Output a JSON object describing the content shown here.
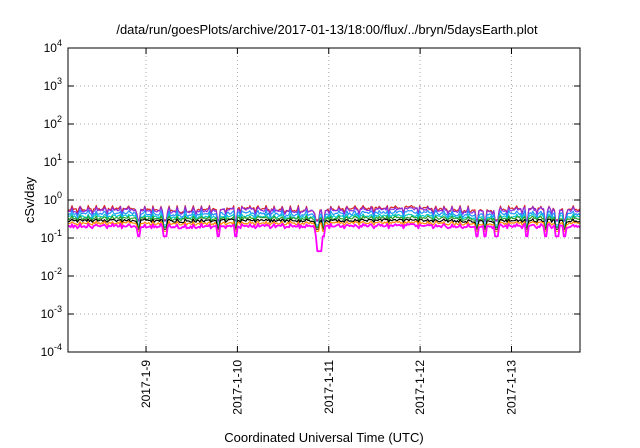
{
  "chart_data": {
    "type": "line",
    "title": "/data/run/goesPlots/archive/2017-01-13/18:00/flux/../bryn/5daysEarth.plot",
    "xlabel": "Coordinated Universal Time (UTC)",
    "ylabel": "cSv/day",
    "yscale": "log",
    "ylim": [
      0.0001,
      10000
    ],
    "xlim": [
      "2017-01-08T03:30",
      "2017-01-13T18:00"
    ],
    "grid": true,
    "x_ticks": [
      {
        "label": "2017-1-9",
        "value": "2017-01-09"
      },
      {
        "label": "2017-1-10",
        "value": "2017-01-10"
      },
      {
        "label": "2017-1-11",
        "value": "2017-01-11"
      },
      {
        "label": "2017-1-12",
        "value": "2017-01-12"
      },
      {
        "label": "2017-1-13",
        "value": "2017-01-13"
      }
    ],
    "y_ticks": [
      {
        "base": "10",
        "exp": "-4",
        "value": 0.0001
      },
      {
        "base": "10",
        "exp": "-3",
        "value": 0.001
      },
      {
        "base": "10",
        "exp": "-2",
        "value": 0.01
      },
      {
        "base": "10",
        "exp": "-1",
        "value": 0.1
      },
      {
        "base": "10",
        "exp": "0",
        "value": 1
      },
      {
        "base": "10",
        "exp": "1",
        "value": 10
      },
      {
        "base": "10",
        "exp": "2",
        "value": 100
      },
      {
        "base": "10",
        "exp": "3",
        "value": 1000
      },
      {
        "base": "10",
        "exp": "4",
        "value": 10000
      }
    ],
    "dips": [
      "2017-01-08T22:00",
      "2017-01-09T05:00",
      "2017-01-09T19:00",
      "2017-01-09T23:30",
      "2017-01-10T21:00",
      "2017-01-10T22:30",
      "2017-01-12T15:00",
      "2017-01-12T17:00",
      "2017-01-12T20:00",
      "2017-01-13T04:00",
      "2017-01-13T09:00",
      "2017-01-13T12:00",
      "2017-01-13T14:00"
    ],
    "series": [
      {
        "color": "#d62728",
        "values": [
          0.55,
          0.6,
          0.5,
          0.62,
          0.52,
          0.58,
          0.65,
          0.5,
          0.6,
          0.55
        ],
        "lo": 0.45,
        "hi": 0.7,
        "dip": 0.3
      },
      {
        "color": "#8a2be2",
        "values": [
          0.5,
          0.56,
          0.47,
          0.58,
          0.5,
          0.54,
          0.6,
          0.48,
          0.57,
          0.52
        ],
        "lo": 0.42,
        "hi": 0.64,
        "dip": 0.28
      },
      {
        "color": "#1e90ff",
        "values": [
          0.42,
          0.46,
          0.38,
          0.47,
          0.4,
          0.44,
          0.49,
          0.39,
          0.45,
          0.43
        ],
        "lo": 0.35,
        "hi": 0.52,
        "dip": 0.22
      },
      {
        "color": "#00c8c8",
        "values": [
          0.36,
          0.38,
          0.34,
          0.39,
          0.35,
          0.37,
          0.4,
          0.34,
          0.38,
          0.36
        ],
        "lo": 0.32,
        "hi": 0.42,
        "dip": 0.2
      },
      {
        "color": "#2ca02c",
        "values": [
          0.32,
          0.33,
          0.31,
          0.34,
          0.32,
          0.33,
          0.35,
          0.31,
          0.34,
          0.32
        ],
        "lo": 0.29,
        "hi": 0.37,
        "dip": 0.19
      },
      {
        "color": "#000000",
        "values": [
          0.28,
          0.29,
          0.27,
          0.3,
          0.28,
          0.29,
          0.3,
          0.27,
          0.29,
          0.28
        ],
        "lo": 0.26,
        "hi": 0.31,
        "dip": 0.17
      },
      {
        "color": "#ff8c00",
        "values": [
          0.24,
          0.25,
          0.23,
          0.25,
          0.24,
          0.25,
          0.26,
          0.23,
          0.25,
          0.24
        ],
        "lo": 0.22,
        "hi": 0.27,
        "dip": 0.15
      },
      {
        "color": "#ff00ff",
        "values": [
          0.2,
          0.21,
          0.19,
          0.21,
          0.2,
          0.21,
          0.22,
          0.19,
          0.21,
          0.2
        ],
        "lo": 0.18,
        "hi": 0.23,
        "dip": 0.11,
        "deep_dip": {
          "x": "2017-01-10T21:30",
          "y": 0.045
        }
      }
    ]
  }
}
